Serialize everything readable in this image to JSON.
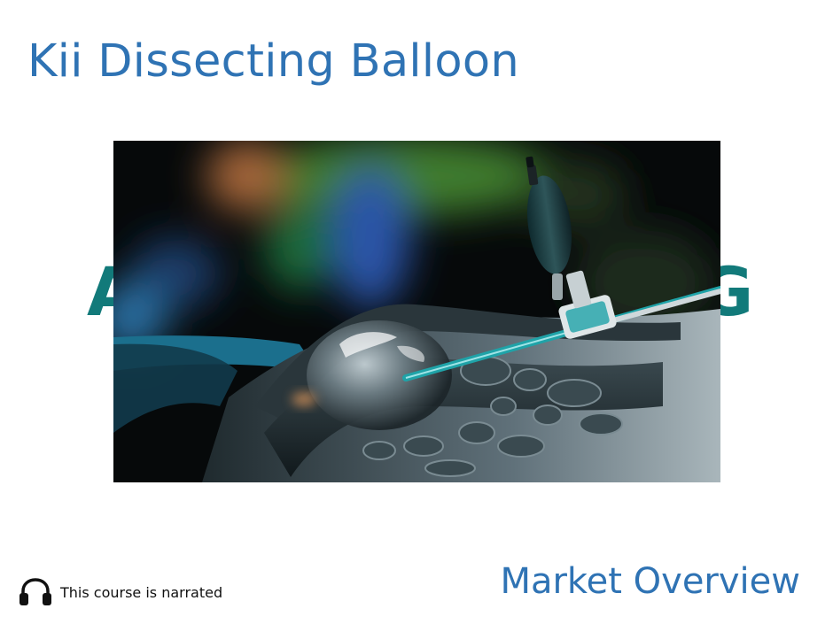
{
  "slide": {
    "title": "Kii Dissecting Balloon",
    "subtitle": "Market Overview"
  },
  "background_logo": {
    "left_fragment": "A",
    "right_fragment": "G",
    "color": "#127a7a"
  },
  "hero_image": {
    "icon": "dissecting-balloon-illustration"
  },
  "narration": {
    "icon": "headphones-icon",
    "label": "This course is narrated"
  },
  "colors": {
    "title": "#2f73b4",
    "accent_teal": "#1fa3a8"
  }
}
